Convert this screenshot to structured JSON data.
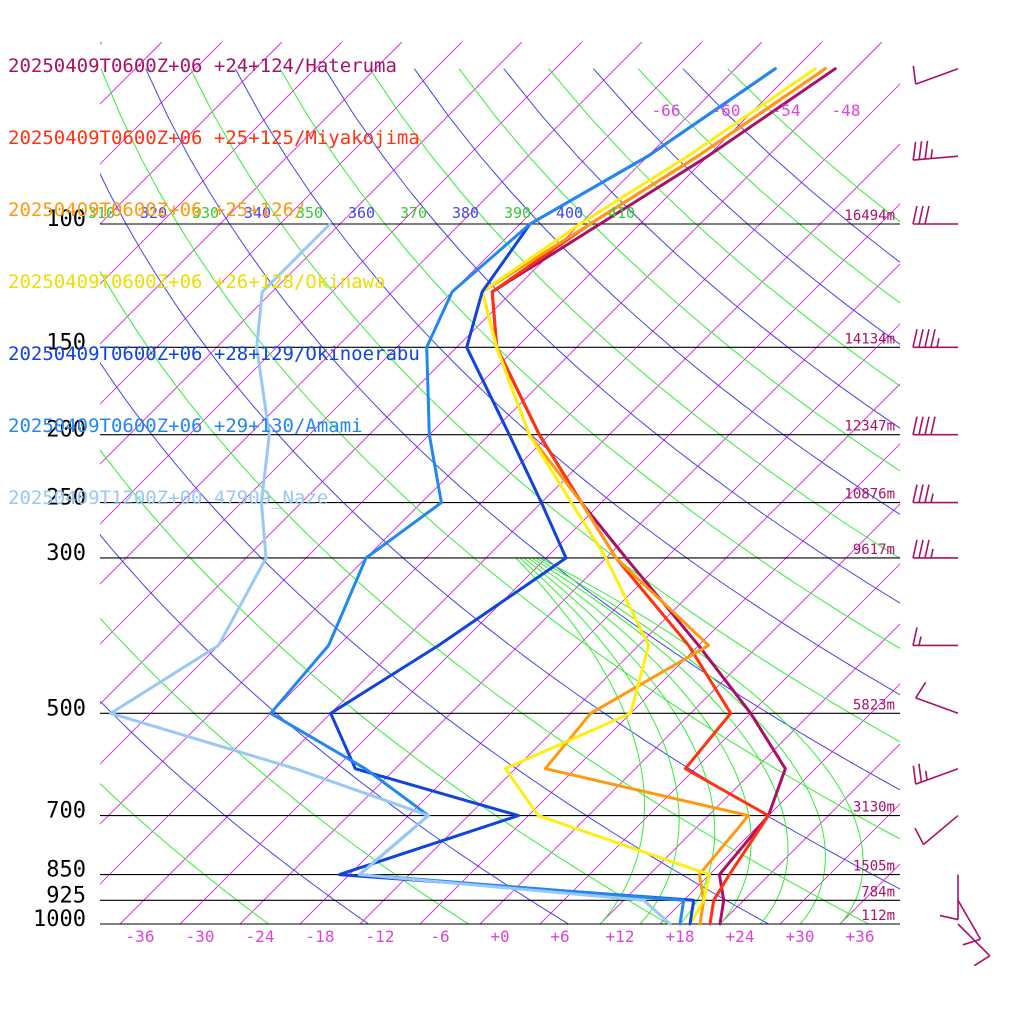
{
  "chart_data": {
    "type": "line",
    "subtype": "skew-t log-p sounding",
    "title": "",
    "xlabel": "",
    "ylabel": "",
    "xlim": [
      -40,
      40
    ],
    "ylim": [
      1000,
      100
    ],
    "x_ticks": [
      "-36",
      "-30",
      "-24",
      "-18",
      "-12",
      "-6",
      "+0",
      "+6",
      "+12",
      "+18",
      "+24",
      "+30",
      "+36"
    ],
    "pressure_levels": [
      {
        "label": "100",
        "p": 100,
        "height": "16494m"
      },
      {
        "label": "150",
        "p": 150,
        "height": "14134m"
      },
      {
        "label": "200",
        "p": 200,
        "height": "12347m"
      },
      {
        "label": "250",
        "p": 250,
        "height": "10876m"
      },
      {
        "label": "300",
        "p": 300,
        "height": "9617m"
      },
      {
        "label": "",
        "p": 400,
        "height": ""
      },
      {
        "label": "500",
        "p": 500,
        "height": "5823m"
      },
      {
        "label": "",
        "p": 600,
        "height": ""
      },
      {
        "label": "700",
        "p": 700,
        "height": "3130m"
      },
      {
        "label": "850",
        "p": 850,
        "height": "1505m"
      },
      {
        "label": "925",
        "p": 925,
        "height": "784m"
      },
      {
        "label": "1000",
        "p": 1000,
        "height": "112m"
      }
    ],
    "theta_labels": [
      "310",
      "320",
      "330",
      "340",
      "350",
      "360",
      "370",
      "380",
      "390",
      "400",
      "410"
    ],
    "isotherm_labels_top": [
      "-66",
      "-60",
      "-54",
      "-48"
    ],
    "grid": true,
    "legend_position": "top-left",
    "series": [
      {
        "name": "20250409T0600Z+06 +24+124/Hateruma",
        "color": "#aa1166",
        "p": [
          1000,
          925,
          850,
          700,
          600,
          500,
          400,
          300,
          250,
          200,
          150,
          125,
          100,
          80,
          60
        ],
        "t": [
          22,
          20,
          17,
          16,
          13,
          4,
          -8,
          -24,
          -34,
          -45,
          -58,
          -64,
          -60,
          -56,
          -52
        ]
      },
      {
        "name": "20250409T0600Z+06 +25+125/Miyakojima",
        "color": "#ff3311",
        "p": [
          1000,
          925,
          850,
          700,
          600,
          500,
          400,
          300,
          250,
          200,
          150,
          125,
          100,
          80,
          60
        ],
        "t": [
          21,
          19,
          18,
          16,
          3,
          2,
          -9,
          -25,
          -34,
          -45,
          -58,
          -64,
          -61,
          -57,
          -53
        ]
      },
      {
        "name": "20250409T0600Z+06 +25+126/",
        "color": "#ff9911",
        "p": [
          1000,
          925,
          850,
          700,
          600,
          500,
          400,
          300,
          250,
          200,
          150,
          125,
          100,
          80,
          60
        ],
        "t": [
          20,
          18,
          15,
          14,
          -11,
          -12,
          -7,
          -25,
          -34,
          -46,
          -58,
          -65,
          -61,
          -57,
          -53
        ]
      },
      {
        "name": "20250409T0600Z+06 +26+128/Okinawa",
        "color": "#ffee11",
        "p": [
          1000,
          925,
          850,
          700,
          600,
          500,
          400,
          300,
          250,
          200,
          150,
          125,
          100,
          80,
          60
        ],
        "t": [
          19,
          18,
          16,
          -7,
          -15,
          -8,
          -13,
          -26,
          -35,
          -46,
          -58,
          -65,
          -62,
          -58,
          -54
        ]
      },
      {
        "name": "20250409T0600Z+06 +28+129/Okinoerabu",
        "color": "#1144dd",
        "p": [
          1000,
          925,
          850,
          700,
          600,
          500,
          400,
          300,
          250,
          200,
          150,
          125,
          100,
          80,
          60
        ],
        "t": [
          19,
          17,
          -21,
          -9,
          -30,
          -38,
          -34,
          -30,
          -38,
          -48,
          -61,
          -65,
          -67,
          -62,
          -58
        ]
      },
      {
        "name": "20250409T0600Z+06 +29+130/Amami",
        "color": "#2288ee",
        "p": [
          1000,
          925,
          850,
          700,
          600,
          500,
          400,
          300,
          250,
          200,
          150,
          125,
          100,
          80,
          60
        ],
        "t": [
          18,
          16,
          -19,
          -18,
          -29,
          -44,
          -45,
          -50,
          -48,
          -56,
          -65,
          -68,
          -67,
          -62,
          -58
        ]
      },
      {
        "name": "20250409T1200Z+00 47909_Naze",
        "color": "#99c8f4",
        "p": [
          1000,
          925,
          850,
          700,
          600,
          500,
          400,
          300,
          250,
          200,
          150,
          125,
          100
        ],
        "t": [
          17,
          12,
          -19,
          -18,
          -36,
          -60,
          -56,
          -60,
          -66,
          -72,
          -82,
          -87,
          -87
        ]
      }
    ],
    "wind_barbs": [
      {
        "p": 60,
        "speed_kt": 10,
        "dir_deg": 250
      },
      {
        "p": 80,
        "speed_kt": 35,
        "dir_deg": 265
      },
      {
        "p": 100,
        "speed_kt": 30,
        "dir_deg": 270
      },
      {
        "p": 150,
        "speed_kt": 45,
        "dir_deg": 270
      },
      {
        "p": 200,
        "speed_kt": 40,
        "dir_deg": 270
      },
      {
        "p": 250,
        "speed_kt": 35,
        "dir_deg": 270
      },
      {
        "p": 300,
        "speed_kt": 35,
        "dir_deg": 270
      },
      {
        "p": 400,
        "speed_kt": 15,
        "dir_deg": 270
      },
      {
        "p": 500,
        "speed_kt": 10,
        "dir_deg": 290
      },
      {
        "p": 600,
        "speed_kt": 25,
        "dir_deg": 250
      },
      {
        "p": 700,
        "speed_kt": 10,
        "dir_deg": 230
      },
      {
        "p": 850,
        "speed_kt": 10,
        "dir_deg": 180
      },
      {
        "p": 925,
        "speed_kt": 10,
        "dir_deg": 150
      },
      {
        "p": 1000,
        "speed_kt": 10,
        "dir_deg": 135
      }
    ],
    "colors": {
      "isotherm": "#dd22dd",
      "dry_adiabat": "#4444ee",
      "moist_adiabat": "#33ee33",
      "isobar": "#000000",
      "height_label": "#aa1166",
      "tick_label": "#dd44dd",
      "barb": "#aa1166"
    }
  }
}
